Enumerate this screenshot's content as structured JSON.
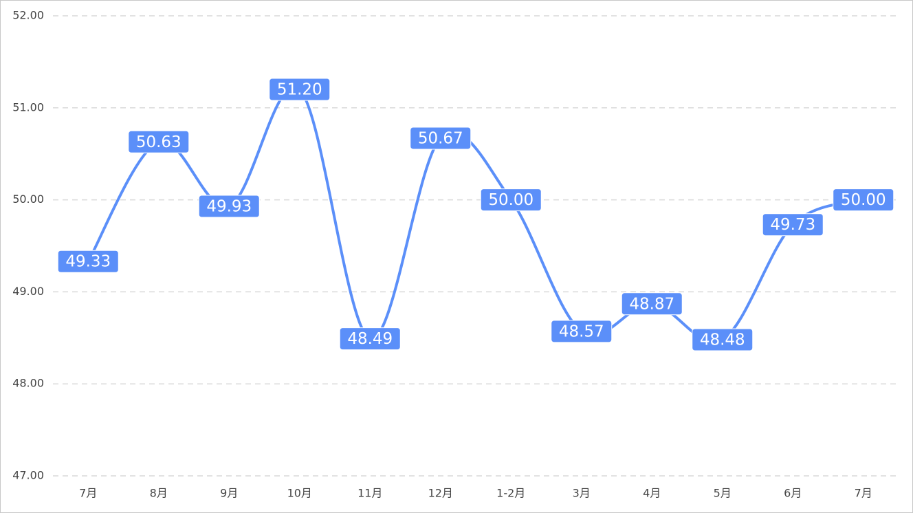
{
  "chart_data": {
    "type": "line",
    "smooth": true,
    "color": "#5b8ff9",
    "grid": true,
    "categories": [
      "7月",
      "8月",
      "9月",
      "10月",
      "11月",
      "12月",
      "1-2月",
      "3月",
      "4月",
      "5月",
      "6月",
      "7月"
    ],
    "values": [
      49.33,
      50.63,
      49.93,
      51.2,
      48.49,
      50.67,
      50,
      48.57,
      48.87,
      48.48,
      49.73,
      50
    ],
    "value_labels": [
      "49.33",
      "50.63",
      "49.93",
      "51.20",
      "48.49",
      "50.67",
      "50.00",
      "48.57",
      "48.87",
      "48.48",
      "49.73",
      "50.00"
    ],
    "ylim": [
      47,
      52
    ],
    "yticks": [
      {
        "value": 47,
        "label": "47.00"
      },
      {
        "value": 48,
        "label": "48.00"
      },
      {
        "value": 49,
        "label": "49.00"
      },
      {
        "value": 50,
        "label": "50.00"
      },
      {
        "value": 51,
        "label": "51.00"
      },
      {
        "value": 52,
        "label": "52.00"
      }
    ]
  }
}
